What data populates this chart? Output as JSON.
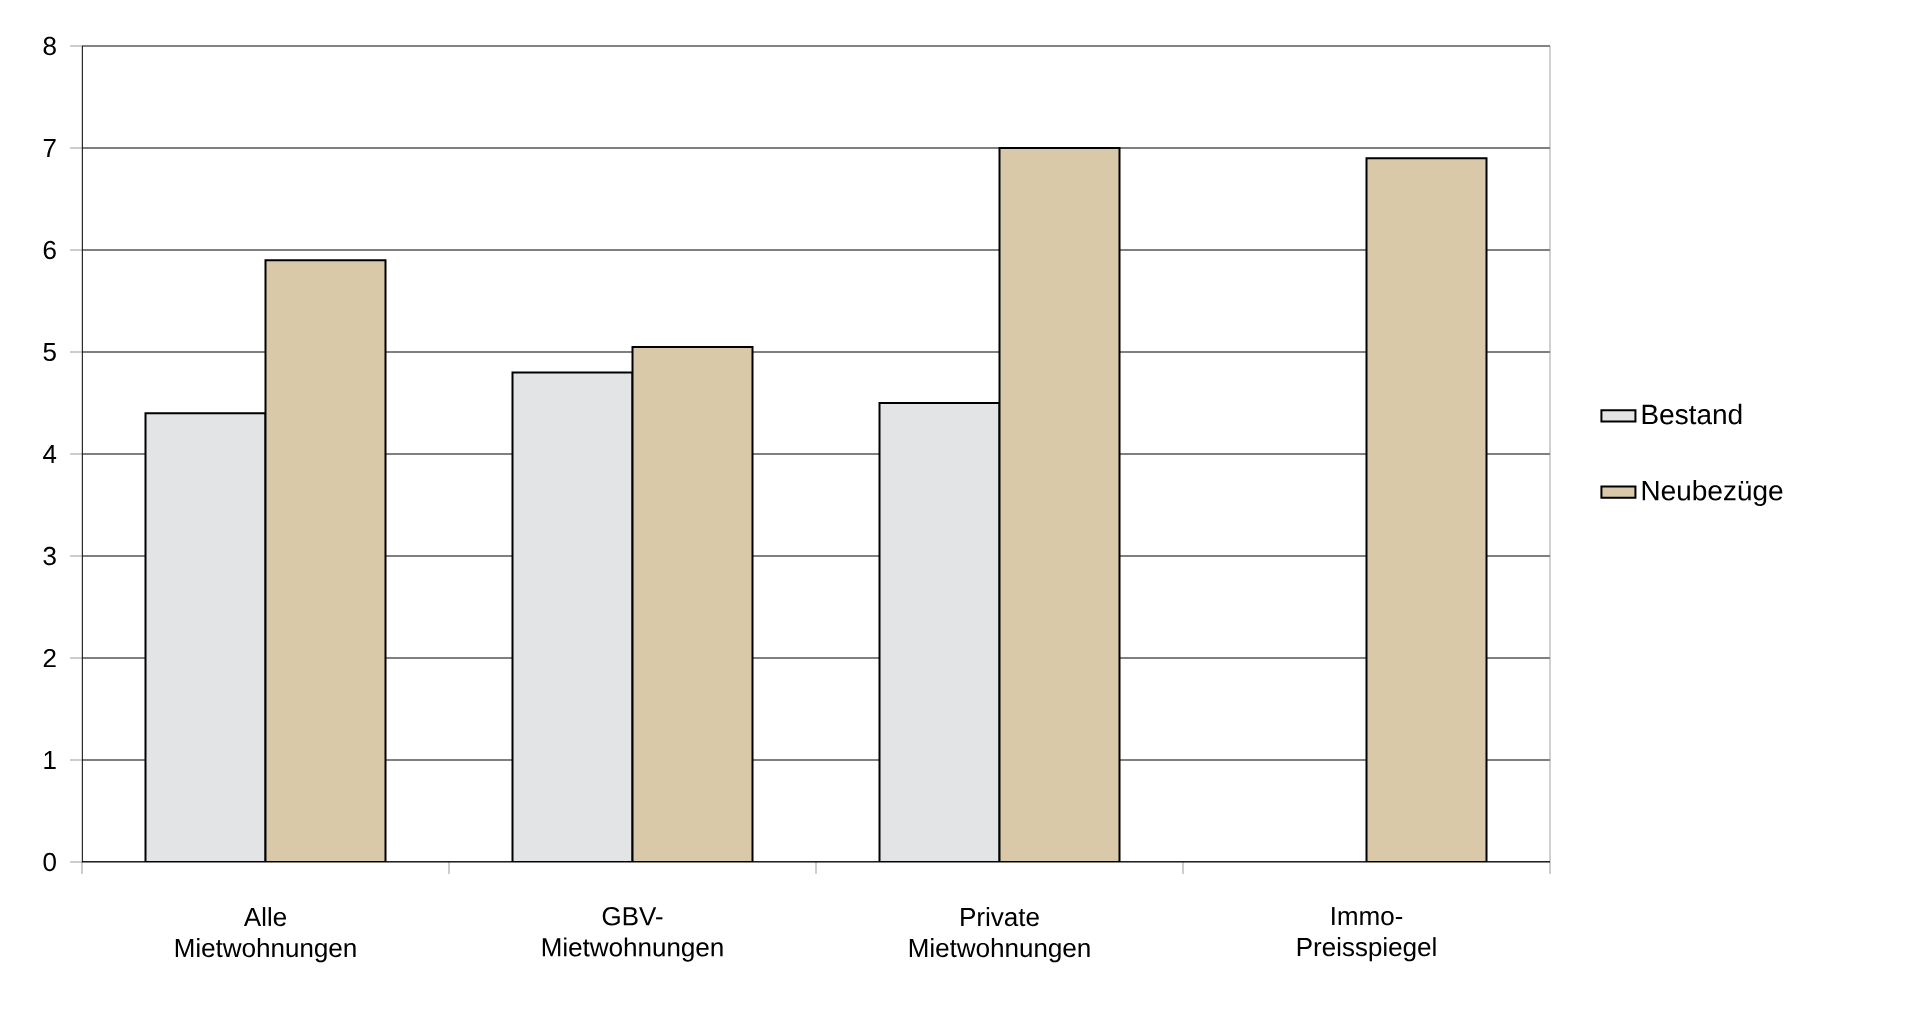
{
  "chart_data": {
    "type": "bar",
    "categories": [
      "Alle Mietwohnungen",
      "GBV-Mietwohnungen",
      "Private Mietwohnungen",
      "Immo-Preisspiegel"
    ],
    "series": [
      {
        "name": "Bestand",
        "color": "#e2e4e6",
        "values": [
          4.4,
          4.8,
          4.5,
          null
        ]
      },
      {
        "name": "Neubezüge",
        "color": "#d9c9a9",
        "values": [
          5.9,
          5.05,
          7.0,
          6.9
        ]
      }
    ],
    "ylim": [
      0,
      8
    ],
    "yticks": [
      0,
      1,
      2,
      3,
      4,
      5,
      6,
      7,
      8
    ],
    "grid": "y",
    "legend": "right"
  }
}
